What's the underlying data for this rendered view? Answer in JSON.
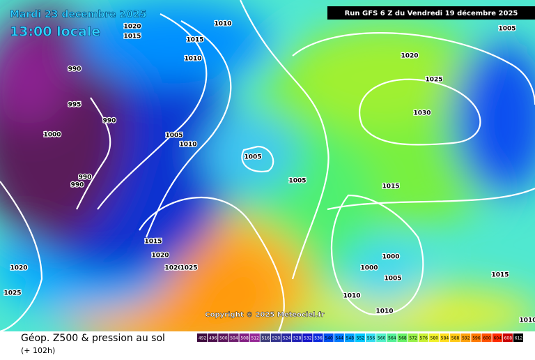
{
  "header": {
    "date": "Mardi 23 decembre 2025",
    "time": "13:00 locale",
    "run": "Run GFS 6 Z du Vendredi 19 décembre 2025"
  },
  "copyright": "Copyright © 2025 Meteociel.fr",
  "footer": {
    "title": "Géop. Z500 & pression au sol",
    "subtitle": "(+ 102h)"
  },
  "isobar_labels": [
    1020,
    1015,
    1010,
    1015,
    1010,
    990,
    995,
    990,
    1000,
    1005,
    1010,
    1005,
    990,
    990,
    1005,
    1015,
    1020,
    1025,
    1030,
    1005,
    1015,
    1020,
    1020,
    1025,
    1000,
    1000,
    1005,
    1015,
    1010,
    1010,
    1020,
    1025,
    1010
  ],
  "colorbar": {
    "ticks": [
      492,
      496,
      500,
      504,
      508,
      512,
      516,
      520,
      524,
      528,
      532,
      536,
      540,
      544,
      548,
      552,
      556,
      560,
      564,
      568,
      572,
      576,
      580,
      584,
      588,
      592,
      596,
      600,
      604,
      608,
      612
    ],
    "colors": [
      "#3c0a3c",
      "#4b0f4b",
      "#5a145a",
      "#6e1e6e",
      "#821e82",
      "#962896",
      "#3c3c78",
      "#32328c",
      "#2828a0",
      "#1e1eb4",
      "#1414c8",
      "#0a28dc",
      "#0050f0",
      "#0078ff",
      "#00a0ff",
      "#00c8ff",
      "#32dcf0",
      "#50f0c8",
      "#50f096",
      "#64f064",
      "#96f046",
      "#c8f032",
      "#f0f028",
      "#ffdc1e",
      "#ffc814",
      "#ffa00a",
      "#ff7800",
      "#ff5000",
      "#ff2800",
      "#c80000",
      "#000000"
    ]
  }
}
